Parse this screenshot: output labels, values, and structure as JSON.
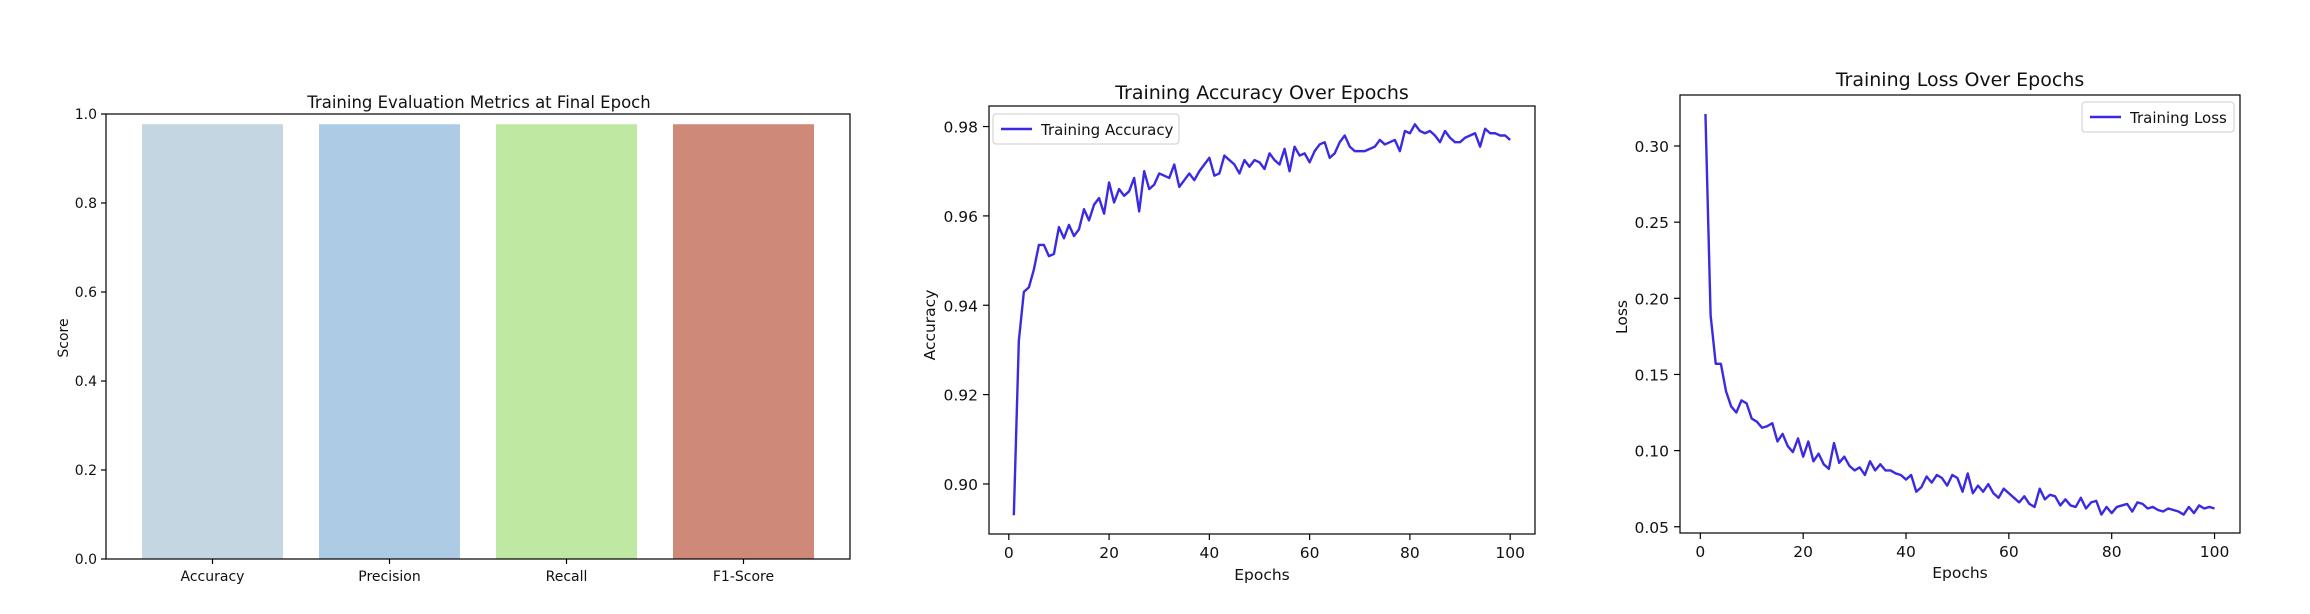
{
  "chart_data": [
    {
      "type": "bar",
      "title": "Training Evaluation Metrics at Final Epoch",
      "xlabel": "",
      "ylabel": "Score",
      "ylim": [
        0,
        1
      ],
      "yticks": [
        "0.0",
        "0.2",
        "0.4",
        "0.6",
        "0.8",
        "1.0"
      ],
      "categories": [
        "Accuracy",
        "Precision",
        "Recall",
        "F1-Score"
      ],
      "values": [
        0.977,
        0.977,
        0.977,
        0.977
      ],
      "colors": [
        "#c3d6e1",
        "#aecbe6",
        "#bfe8a3",
        "#cf8979"
      ]
    },
    {
      "type": "line",
      "title": "Training Accuracy Over Epochs",
      "xlabel": "Epochs",
      "ylabel": "Accuracy",
      "xlim": [
        -3.95,
        104.95
      ],
      "ylim": [
        0.8888,
        0.9846
      ],
      "xticks": [
        "0",
        "20",
        "40",
        "60",
        "80",
        "100"
      ],
      "yticks": [
        "0.90",
        "0.92",
        "0.94",
        "0.96",
        "0.98"
      ],
      "legend": "upper-left",
      "color": "#3a2be3",
      "series": [
        {
          "name": "Training Accuracy",
          "x": [
            1,
            2,
            3,
            4,
            5,
            6,
            7,
            8,
            9,
            10,
            11,
            12,
            13,
            14,
            15,
            16,
            17,
            18,
            19,
            20,
            21,
            22,
            23,
            24,
            25,
            26,
            27,
            28,
            29,
            30,
            31,
            32,
            33,
            34,
            35,
            36,
            37,
            38,
            39,
            40,
            41,
            42,
            43,
            44,
            45,
            46,
            47,
            48,
            49,
            50,
            51,
            52,
            53,
            54,
            55,
            56,
            57,
            58,
            59,
            60,
            61,
            62,
            63,
            64,
            65,
            66,
            67,
            68,
            69,
            70,
            71,
            72,
            73,
            74,
            75,
            76,
            77,
            78,
            79,
            80,
            81,
            82,
            83,
            84,
            85,
            86,
            87,
            88,
            89,
            90,
            91,
            92,
            93,
            94,
            95,
            96,
            97,
            98,
            99,
            100
          ],
          "values": [
            0.893,
            0.932,
            0.943,
            0.944,
            0.948,
            0.9535,
            0.9535,
            0.951,
            0.9515,
            0.9575,
            0.955,
            0.958,
            0.9555,
            0.957,
            0.9615,
            0.959,
            0.9625,
            0.964,
            0.9605,
            0.9675,
            0.963,
            0.966,
            0.9645,
            0.9655,
            0.9685,
            0.961,
            0.97,
            0.966,
            0.967,
            0.9695,
            0.969,
            0.9685,
            0.9715,
            0.9665,
            0.968,
            0.9695,
            0.968,
            0.97,
            0.9715,
            0.973,
            0.969,
            0.9695,
            0.9735,
            0.9725,
            0.9715,
            0.9695,
            0.9725,
            0.971,
            0.9725,
            0.972,
            0.9705,
            0.974,
            0.9725,
            0.9715,
            0.975,
            0.97,
            0.9755,
            0.9735,
            0.974,
            0.972,
            0.9745,
            0.976,
            0.9765,
            0.973,
            0.974,
            0.9765,
            0.978,
            0.9755,
            0.9745,
            0.9745,
            0.9745,
            0.975,
            0.9755,
            0.977,
            0.976,
            0.9765,
            0.977,
            0.9745,
            0.979,
            0.9785,
            0.9805,
            0.979,
            0.9785,
            0.979,
            0.978,
            0.9765,
            0.979,
            0.9775,
            0.9765,
            0.9765,
            0.9775,
            0.978,
            0.9785,
            0.9755,
            0.9795,
            0.9785,
            0.9785,
            0.978,
            0.978,
            0.977
          ]
        }
      ]
    },
    {
      "type": "line",
      "title": "Training Loss Over Epochs",
      "xlabel": "Epochs",
      "ylabel": "Loss",
      "xlim": [
        -3.95,
        104.95
      ],
      "ylim": [
        0.0459,
        0.3335
      ],
      "xticks": [
        "0",
        "20",
        "40",
        "60",
        "80",
        "100"
      ],
      "yticks": [
        "0.05",
        "0.10",
        "0.15",
        "0.20",
        "0.25",
        "0.30"
      ],
      "legend": "upper-right",
      "color": "#3a2be3",
      "series": [
        {
          "name": "Training Loss",
          "x": [
            1,
            2,
            3,
            4,
            5,
            6,
            7,
            8,
            9,
            10,
            11,
            12,
            13,
            14,
            15,
            16,
            17,
            18,
            19,
            20,
            21,
            22,
            23,
            24,
            25,
            26,
            27,
            28,
            29,
            30,
            31,
            32,
            33,
            34,
            35,
            36,
            37,
            38,
            39,
            40,
            41,
            42,
            43,
            44,
            45,
            46,
            47,
            48,
            49,
            50,
            51,
            52,
            53,
            54,
            55,
            56,
            57,
            58,
            59,
            60,
            61,
            62,
            63,
            64,
            65,
            66,
            67,
            68,
            69,
            70,
            71,
            72,
            73,
            74,
            75,
            76,
            77,
            78,
            79,
            80,
            81,
            82,
            83,
            84,
            85,
            86,
            87,
            88,
            89,
            90,
            91,
            92,
            93,
            94,
            95,
            96,
            97,
            98,
            99,
            100
          ],
          "values": [
            0.321,
            0.189,
            0.157,
            0.157,
            0.139,
            0.129,
            0.125,
            0.133,
            0.131,
            0.121,
            0.119,
            0.115,
            0.116,
            0.118,
            0.106,
            0.111,
            0.103,
            0.099,
            0.108,
            0.096,
            0.106,
            0.093,
            0.098,
            0.091,
            0.088,
            0.105,
            0.092,
            0.096,
            0.09,
            0.087,
            0.089,
            0.084,
            0.093,
            0.087,
            0.091,
            0.087,
            0.087,
            0.085,
            0.084,
            0.081,
            0.084,
            0.073,
            0.076,
            0.083,
            0.079,
            0.084,
            0.082,
            0.077,
            0.084,
            0.082,
            0.073,
            0.085,
            0.072,
            0.077,
            0.073,
            0.078,
            0.072,
            0.069,
            0.075,
            0.072,
            0.069,
            0.066,
            0.07,
            0.065,
            0.063,
            0.075,
            0.068,
            0.071,
            0.07,
            0.064,
            0.068,
            0.064,
            0.063,
            0.069,
            0.062,
            0.066,
            0.067,
            0.058,
            0.063,
            0.059,
            0.063,
            0.064,
            0.065,
            0.06,
            0.066,
            0.065,
            0.062,
            0.063,
            0.061,
            0.06,
            0.062,
            0.061,
            0.06,
            0.058,
            0.063,
            0.059,
            0.064,
            0.062,
            0.063,
            0.062
          ]
        }
      ]
    }
  ]
}
